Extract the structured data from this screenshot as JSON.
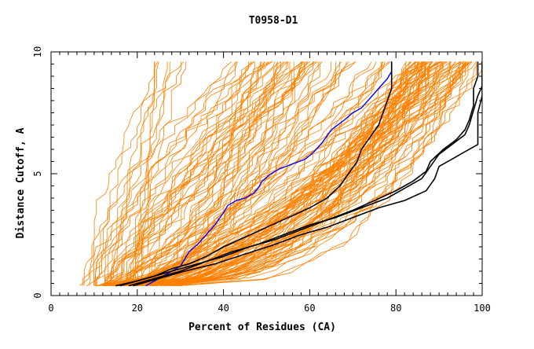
{
  "chart_data": {
    "type": "line",
    "title": "T0958-D1",
    "xlabel": "Percent of Residues (CA)",
    "ylabel": "Distance Cutoff, A",
    "xlim": [
      0,
      100
    ],
    "ylim": [
      0,
      10
    ],
    "x_ticks": [
      0,
      20,
      40,
      60,
      80,
      100
    ],
    "y_ticks": [
      0,
      5,
      10
    ],
    "grid": false,
    "legend": "none",
    "colors": {
      "background_models": "#ff8000",
      "highlight_blue": "#0000ff",
      "highlight_black": "#000000",
      "axes": "#000000"
    },
    "background_model_count": 150,
    "highlighted_series": [
      {
        "color": "#0000ff",
        "points": [
          [
            22,
            0.4
          ],
          [
            24,
            0.6
          ],
          [
            26,
            0.8
          ],
          [
            28,
            1.0
          ],
          [
            30,
            1.2
          ],
          [
            31,
            1.5
          ],
          [
            32,
            1.8
          ],
          [
            34,
            2.1
          ],
          [
            36,
            2.5
          ],
          [
            38,
            2.9
          ],
          [
            40,
            3.4
          ],
          [
            41,
            3.7
          ],
          [
            43,
            3.9
          ],
          [
            45,
            4.0
          ],
          [
            47,
            4.2
          ],
          [
            48,
            4.4
          ],
          [
            49,
            4.7
          ],
          [
            51,
            5.0
          ],
          [
            53,
            5.2
          ],
          [
            56,
            5.4
          ],
          [
            59,
            5.6
          ],
          [
            61,
            5.9
          ],
          [
            63,
            6.3
          ],
          [
            65,
            6.8
          ],
          [
            68,
            7.2
          ],
          [
            70,
            7.5
          ],
          [
            72,
            7.7
          ],
          [
            74,
            8.1
          ],
          [
            76,
            8.5
          ],
          [
            78,
            8.9
          ],
          [
            79,
            9.2
          ],
          [
            79,
            9.6
          ]
        ]
      },
      {
        "color": "#000000",
        "points": [
          [
            15,
            0.4
          ],
          [
            20,
            0.6
          ],
          [
            24,
            0.8
          ],
          [
            28,
            1.1
          ],
          [
            32,
            1.3
          ],
          [
            36,
            1.6
          ],
          [
            40,
            2.0
          ],
          [
            45,
            2.4
          ],
          [
            50,
            2.8
          ],
          [
            55,
            3.2
          ],
          [
            60,
            3.6
          ],
          [
            64,
            4.0
          ],
          [
            67,
            4.5
          ],
          [
            69,
            5.0
          ],
          [
            71,
            5.5
          ],
          [
            72,
            6.0
          ],
          [
            74,
            6.5
          ],
          [
            76,
            7.0
          ],
          [
            77,
            7.5
          ],
          [
            78,
            8.0
          ],
          [
            79,
            8.5
          ],
          [
            79,
            9.0
          ],
          [
            79,
            9.6
          ]
        ]
      },
      {
        "color": "#000000",
        "points": [
          [
            16,
            0.4
          ],
          [
            22,
            0.7
          ],
          [
            28,
            1.0
          ],
          [
            34,
            1.3
          ],
          [
            40,
            1.6
          ],
          [
            46,
            2.0
          ],
          [
            52,
            2.3
          ],
          [
            58,
            2.7
          ],
          [
            64,
            3.1
          ],
          [
            70,
            3.5
          ],
          [
            75,
            3.9
          ],
          [
            80,
            4.3
          ],
          [
            84,
            4.7
          ],
          [
            87,
            5.1
          ],
          [
            88,
            5.5
          ],
          [
            91,
            6.0
          ],
          [
            94,
            6.4
          ],
          [
            96,
            6.8
          ],
          [
            97,
            7.2
          ],
          [
            98,
            7.8
          ],
          [
            98,
            8.5
          ],
          [
            99,
            9.0
          ],
          [
            99,
            9.6
          ]
        ]
      },
      {
        "color": "#000000",
        "points": [
          [
            18,
            0.4
          ],
          [
            24,
            0.7
          ],
          [
            30,
            1.0
          ],
          [
            36,
            1.4
          ],
          [
            42,
            1.8
          ],
          [
            48,
            2.1
          ],
          [
            54,
            2.5
          ],
          [
            60,
            2.9
          ],
          [
            66,
            3.2
          ],
          [
            72,
            3.6
          ],
          [
            78,
            4.0
          ],
          [
            82,
            4.4
          ],
          [
            86,
            4.8
          ],
          [
            88,
            5.3
          ],
          [
            90,
            5.8
          ],
          [
            93,
            6.2
          ],
          [
            96,
            6.6
          ],
          [
            97,
            7.0
          ],
          [
            98,
            7.6
          ],
          [
            99,
            8.2
          ],
          [
            100,
            8.6
          ],
          [
            100,
            9.6
          ]
        ]
      },
      {
        "color": "#000000",
        "points": [
          [
            19,
            0.4
          ],
          [
            25,
            0.7
          ],
          [
            31,
            1.0
          ],
          [
            38,
            1.3
          ],
          [
            45,
            1.7
          ],
          [
            52,
            2.1
          ],
          [
            58,
            2.5
          ],
          [
            64,
            2.8
          ],
          [
            70,
            3.2
          ],
          [
            76,
            3.6
          ],
          [
            82,
            3.9
          ],
          [
            87,
            4.3
          ],
          [
            89,
            4.8
          ],
          [
            90,
            5.3
          ],
          [
            93,
            5.6
          ],
          [
            96,
            5.9
          ],
          [
            99,
            6.2
          ],
          [
            99,
            6.8
          ],
          [
            99,
            7.5
          ],
          [
            100,
            8.2
          ],
          [
            100,
            9.6
          ]
        ]
      }
    ]
  }
}
